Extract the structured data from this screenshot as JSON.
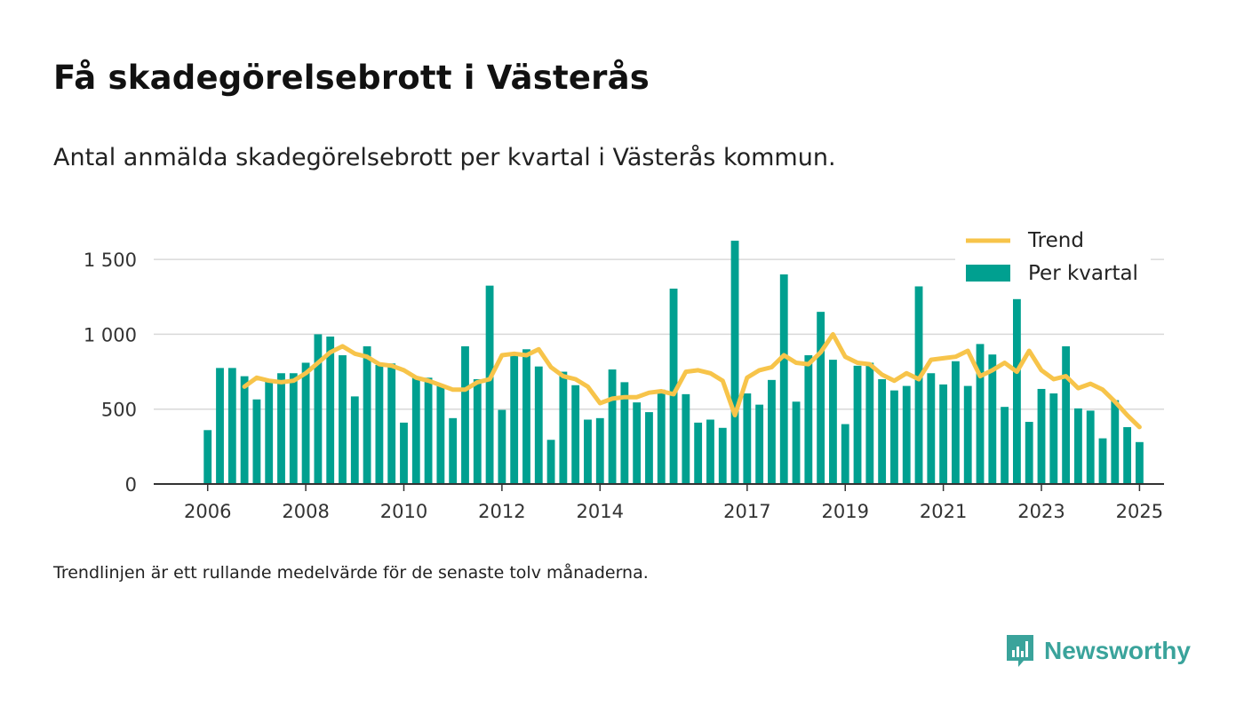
{
  "title": "Få skadegörelsebrott i Västerås",
  "subtitle": "Antal anmälda skadegörelsebrott per kvartal i Västerås kommun.",
  "note": "Trendlinjen är ett rullande medelvärde för de senaste tolv månaderna.",
  "brand": {
    "name": "Newsworthy",
    "icon": "newsworthy-logo-icon",
    "color": "#3aa39b"
  },
  "chart_data": {
    "type": "bar",
    "title": "",
    "xlabel": "",
    "ylabel": "",
    "ylim": [
      0,
      1750
    ],
    "xlim": [
      2004.9,
      2025.5
    ],
    "yticks": [
      0,
      500,
      1000,
      1500
    ],
    "ytick_labels": [
      "0",
      "500",
      "1 000",
      "1 500"
    ],
    "xticks": [
      2006,
      2008,
      2010,
      2012,
      2014,
      2017,
      2019,
      2021,
      2023,
      2025
    ],
    "xtick_labels": [
      "2006",
      "2008",
      "2010",
      "2012",
      "2014",
      "2017",
      "2019",
      "2021",
      "2023",
      "2025"
    ],
    "grid": "horizontal",
    "legend": {
      "position": "top-right",
      "entries": [
        "Trend",
        "Per kvartal"
      ]
    },
    "colors": {
      "bars": "#00a090",
      "trend": "#f7c44a",
      "grid": "#d9d9d9",
      "axis": "#333333"
    },
    "series": [
      {
        "name": "Per kvartal",
        "type": "bar",
        "x": [
          2006.0,
          2006.25,
          2006.5,
          2006.75,
          2007.0,
          2007.25,
          2007.5,
          2007.75,
          2008.0,
          2008.25,
          2008.5,
          2008.75,
          2009.0,
          2009.25,
          2009.5,
          2009.75,
          2010.0,
          2010.25,
          2010.5,
          2010.75,
          2011.0,
          2011.25,
          2011.5,
          2011.75,
          2012.0,
          2012.25,
          2012.5,
          2012.75,
          2013.0,
          2013.25,
          2013.5,
          2013.75,
          2014.0,
          2014.25,
          2014.5,
          2014.75,
          2015.0,
          2015.25,
          2015.5,
          2015.75,
          2016.0,
          2016.25,
          2016.5,
          2016.75,
          2017.0,
          2017.25,
          2017.5,
          2017.75,
          2018.0,
          2018.25,
          2018.5,
          2018.75,
          2019.0,
          2019.25,
          2019.5,
          2019.75,
          2020.0,
          2020.25,
          2020.5,
          2020.75,
          2021.0,
          2021.25,
          2021.5,
          2021.75,
          2022.0,
          2022.25,
          2022.5,
          2022.75,
          2023.0,
          2023.25,
          2023.5,
          2023.75,
          2024.0,
          2024.25,
          2024.5,
          2024.75,
          2025.0
        ],
        "values": [
          360,
          775,
          775,
          720,
          565,
          690,
          740,
          740,
          810,
          1000,
          985,
          860,
          585,
          920,
          795,
          805,
          410,
          710,
          710,
          665,
          440,
          920,
          700,
          1325,
          495,
          870,
          900,
          785,
          295,
          750,
          660,
          430,
          440,
          765,
          680,
          545,
          480,
          630,
          1305,
          600,
          410,
          430,
          375,
          1625,
          605,
          530,
          695,
          1400,
          550,
          860,
          1150,
          830,
          400,
          790,
          810,
          700,
          625,
          655,
          1320,
          740,
          665,
          820,
          655,
          935,
          865,
          515,
          1235,
          415,
          635,
          605,
          920,
          505,
          490,
          305,
          560,
          380,
          280
        ]
      },
      {
        "name": "Trend",
        "type": "line",
        "x": [
          2006.75,
          2007.0,
          2007.25,
          2007.5,
          2007.75,
          2008.0,
          2008.25,
          2008.5,
          2008.75,
          2009.0,
          2009.25,
          2009.5,
          2009.75,
          2010.0,
          2010.25,
          2010.5,
          2010.75,
          2011.0,
          2011.25,
          2011.5,
          2011.75,
          2012.0,
          2012.25,
          2012.5,
          2012.75,
          2013.0,
          2013.25,
          2013.5,
          2013.75,
          2014.0,
          2014.25,
          2014.5,
          2014.75,
          2015.0,
          2015.25,
          2015.5,
          2015.75,
          2016.0,
          2016.25,
          2016.5,
          2016.75,
          2017.0,
          2017.25,
          2017.5,
          2017.75,
          2018.0,
          2018.25,
          2018.5,
          2018.75,
          2019.0,
          2019.25,
          2019.5,
          2019.75,
          2020.0,
          2020.25,
          2020.5,
          2020.75,
          2021.0,
          2021.25,
          2021.5,
          2021.75,
          2022.0,
          2022.25,
          2022.5,
          2022.75,
          2023.0,
          2023.25,
          2023.5,
          2023.75,
          2024.0,
          2024.25,
          2024.5,
          2024.75,
          2025.0
        ],
        "values": [
          650,
          710,
          690,
          680,
          690,
          740,
          810,
          880,
          920,
          870,
          850,
          800,
          790,
          760,
          710,
          690,
          660,
          630,
          630,
          680,
          700,
          860,
          870,
          860,
          900,
          780,
          720,
          700,
          650,
          540,
          570,
          580,
          580,
          610,
          620,
          600,
          750,
          760,
          740,
          690,
          460,
          710,
          760,
          780,
          860,
          810,
          800,
          880,
          1000,
          850,
          810,
          800,
          730,
          690,
          740,
          700,
          830,
          840,
          850,
          890,
          720,
          760,
          810,
          750,
          890,
          760,
          700,
          720,
          640,
          670,
          630,
          550,
          460,
          380
        ]
      }
    ]
  }
}
